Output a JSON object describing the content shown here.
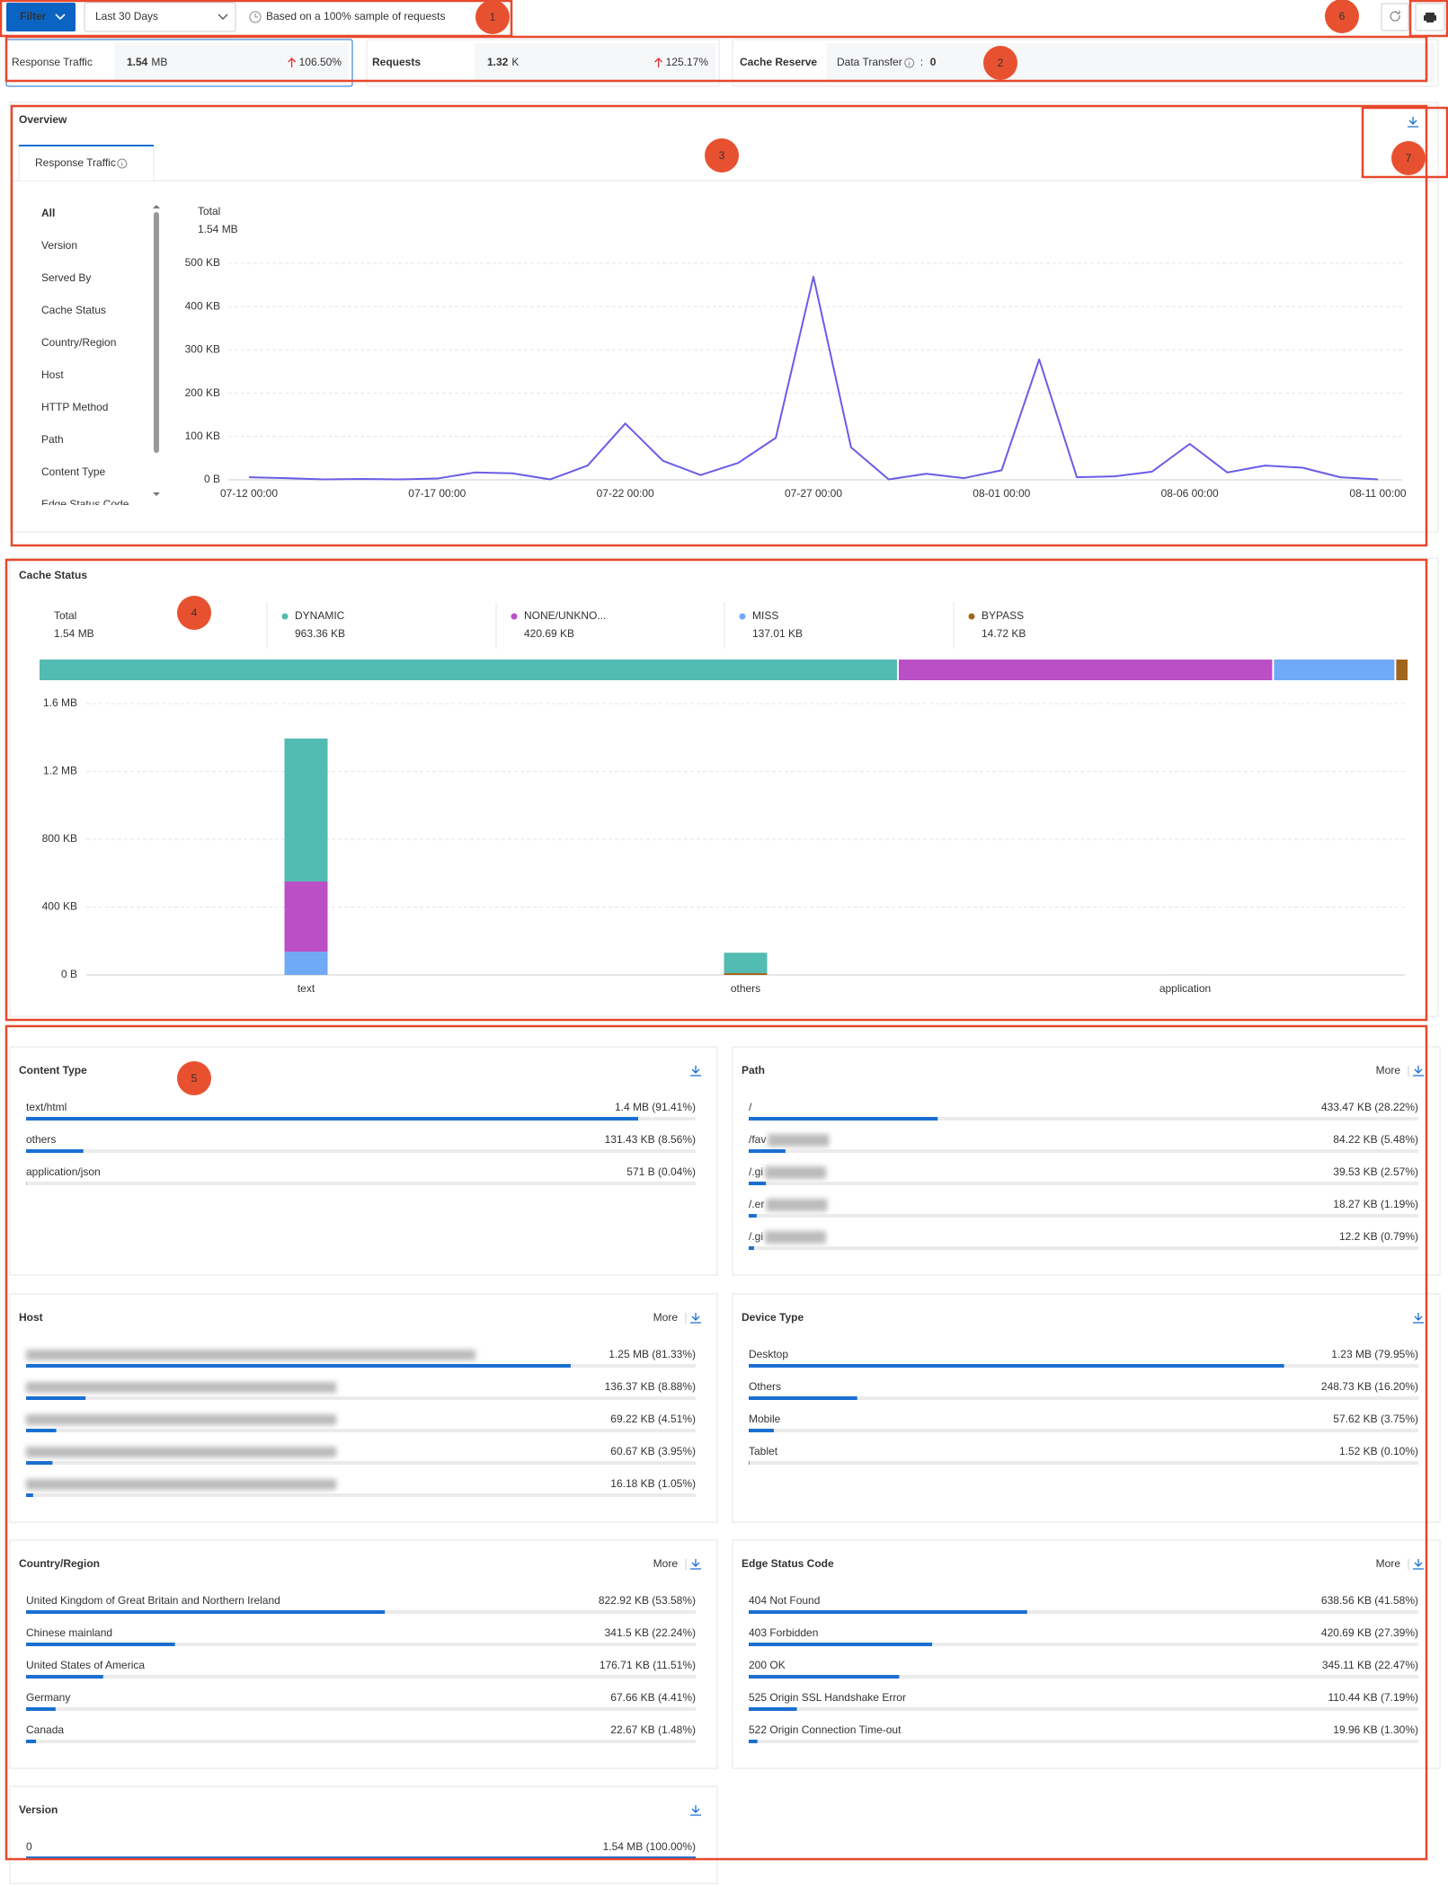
{
  "toolbar": {
    "filter": "Filter",
    "range": "Last 30 Days",
    "sample_note": "Based on a 100% sample of requests"
  },
  "metrics": [
    {
      "label": "Response Traffic",
      "value": "1.54",
      "unit": "MB",
      "change": "106.50%"
    },
    {
      "label": "Requests",
      "value": "1.32",
      "unit": "K",
      "change": "125.17%"
    }
  ],
  "cache_reserve": {
    "label": "Cache Reserve",
    "field": "Data Transfer",
    "separator": ":",
    "value": "0"
  },
  "overview": {
    "title": "Overview",
    "tab": "Response Traffic",
    "dimensions": [
      "All",
      "Version",
      "Served By",
      "Cache Status",
      "Country/Region",
      "Host",
      "HTTP Method",
      "Path",
      "Content Type",
      "Edge Status Code"
    ]
  },
  "chart_data": [
    {
      "type": "line",
      "total_label": "Total",
      "total": "1.54 MB",
      "color": "#6b5ce7",
      "categories": [
        "07-12 00:00",
        null,
        null,
        null,
        null,
        "07-17 00:00",
        null,
        null,
        null,
        null,
        "07-22 00:00",
        null,
        null,
        null,
        null,
        "07-27 00:00",
        null,
        null,
        null,
        null,
        "08-01 00:00",
        null,
        null,
        null,
        null,
        "08-06 00:00",
        null,
        null,
        null,
        null,
        "08-11 00:00"
      ],
      "values": [
        6,
        4,
        1,
        2,
        1,
        3,
        17,
        15,
        1,
        33,
        130,
        44,
        11,
        39,
        97,
        469,
        75,
        1,
        14,
        4,
        22,
        278,
        6,
        8,
        19,
        83,
        17,
        33,
        28,
        6,
        1
      ],
      "ylim": [
        0,
        500
      ],
      "yticks": [
        {
          "value": 0,
          "label": "0 B"
        },
        {
          "value": 100,
          "label": "100 KB"
        },
        {
          "value": 200,
          "label": "200 KB"
        },
        {
          "value": 300,
          "label": "300 KB"
        },
        {
          "value": 400,
          "label": "400 KB"
        },
        {
          "value": 500,
          "label": "500 KB"
        }
      ],
      "grid": true
    },
    {
      "type": "bar",
      "stacked": true,
      "title": "Cache Status",
      "total_label": "Total",
      "total": "1.54 MB",
      "categories": [
        "text",
        "others",
        "application"
      ],
      "series": [
        {
          "name": "DYNAMIC",
          "color": "#52bbb2",
          "values": [
            843,
            120,
            0.5
          ],
          "total": 963.36,
          "total_label": "963.36 KB"
        },
        {
          "name": "NONE/UNKNO...",
          "color": "#bb4fc6",
          "values": [
            414,
            0,
            0
          ],
          "total": 420.69,
          "total_label": "420.69 KB"
        },
        {
          "name": "MISS",
          "color": "#70a9f5",
          "values": [
            137,
            0,
            0
          ],
          "total": 137.01,
          "total_label": "137.01 KB"
        },
        {
          "name": "BYPASS",
          "color": "#a0661c",
          "values": [
            0,
            11,
            0
          ],
          "total": 14.72,
          "total_label": "14.72 KB"
        }
      ],
      "ylim": [
        0,
        1600
      ],
      "yticks": [
        {
          "value": 0,
          "label": "0 B"
        },
        {
          "value": 400,
          "label": "400 KB"
        },
        {
          "value": 800,
          "label": "800 KB"
        },
        {
          "value": 1200,
          "label": "1.2 MB"
        },
        {
          "value": 1600,
          "label": "1.6 MB"
        }
      ],
      "grid": true
    }
  ],
  "panels": [
    {
      "title": "Content Type",
      "items": [
        {
          "name": "text/html",
          "label": "1.4 MB (91.41%)",
          "percent": 91.41
        },
        {
          "name": "others",
          "label": "131.43 KB (8.56%)",
          "percent": 8.56
        },
        {
          "name": "application/json",
          "label": "571 B (0.04%)",
          "percent": 0.04
        }
      ]
    },
    {
      "title": "Path",
      "more": "More",
      "items": [
        {
          "name": "/",
          "label": "433.47 KB (28.22%)",
          "percent": 28.22
        },
        {
          "name": "/fav",
          "label": "84.22 KB (5.48%)",
          "percent": 5.48
        },
        {
          "name": "/.gi",
          "label": "39.53 KB (2.57%)",
          "percent": 2.57
        },
        {
          "name": "/.er",
          "label": "18.27 KB (1.19%)",
          "percent": 1.19
        },
        {
          "name": "/.gi",
          "label": "12.2 KB (0.79%)",
          "percent": 0.79
        }
      ]
    },
    {
      "title": "Host",
      "more": "More",
      "items": [
        {
          "label": "1.25 MB (81.33%)",
          "percent": 81.33
        },
        {
          "label": "136.37 KB (8.88%)",
          "percent": 8.88
        },
        {
          "label": "69.22 KB (4.51%)",
          "percent": 4.51
        },
        {
          "label": "60.67 KB (3.95%)",
          "percent": 3.95
        },
        {
          "label": "16.18 KB (1.05%)",
          "percent": 1.05
        }
      ]
    },
    {
      "title": "Device Type",
      "items": [
        {
          "name": "Desktop",
          "label": "1.23 MB (79.95%)",
          "percent": 79.95
        },
        {
          "name": "Others",
          "label": "248.73 KB (16.20%)",
          "percent": 16.2
        },
        {
          "name": "Mobile",
          "label": "57.62 KB (3.75%)",
          "percent": 3.75
        },
        {
          "name": "Tablet",
          "label": "1.52 KB (0.10%)",
          "percent": 0.1
        }
      ]
    },
    {
      "title": "Country/Region",
      "more": "More",
      "items": [
        {
          "name": "United Kingdom of Great Britain and Northern Ireland",
          "label": "822.92 KB (53.58%)",
          "percent": 53.58
        },
        {
          "name": "Chinese mainland",
          "label": "341.5 KB (22.24%)",
          "percent": 22.24
        },
        {
          "name": "United States of America",
          "label": "176.71 KB (11.51%)",
          "percent": 11.51
        },
        {
          "name": "Germany",
          "label": "67.66 KB (4.41%)",
          "percent": 4.41
        },
        {
          "name": "Canada",
          "label": "22.67 KB (1.48%)",
          "percent": 1.48
        }
      ]
    },
    {
      "title": "Edge Status Code",
      "more": "More",
      "items": [
        {
          "name": "404 Not Found",
          "label": "638.56 KB (41.58%)",
          "percent": 41.58
        },
        {
          "name": "403 Forbidden",
          "label": "420.69 KB (27.39%)",
          "percent": 27.39
        },
        {
          "name": "200 OK",
          "label": "345.11 KB (22.47%)",
          "percent": 22.47
        },
        {
          "name": "525 Origin SSL Handshake Error",
          "label": "110.44 KB (7.19%)",
          "percent": 7.19
        },
        {
          "name": "522 Origin Connection Time-out",
          "label": "19.96 KB (1.30%)",
          "percent": 1.3
        }
      ]
    },
    {
      "title": "Version",
      "items": [
        {
          "name": "0",
          "label": "1.54 MB (100.00%)",
          "percent": 100
        }
      ]
    }
  ],
  "annotations": [
    "1",
    "2",
    "3",
    "4",
    "5",
    "6",
    "7"
  ]
}
